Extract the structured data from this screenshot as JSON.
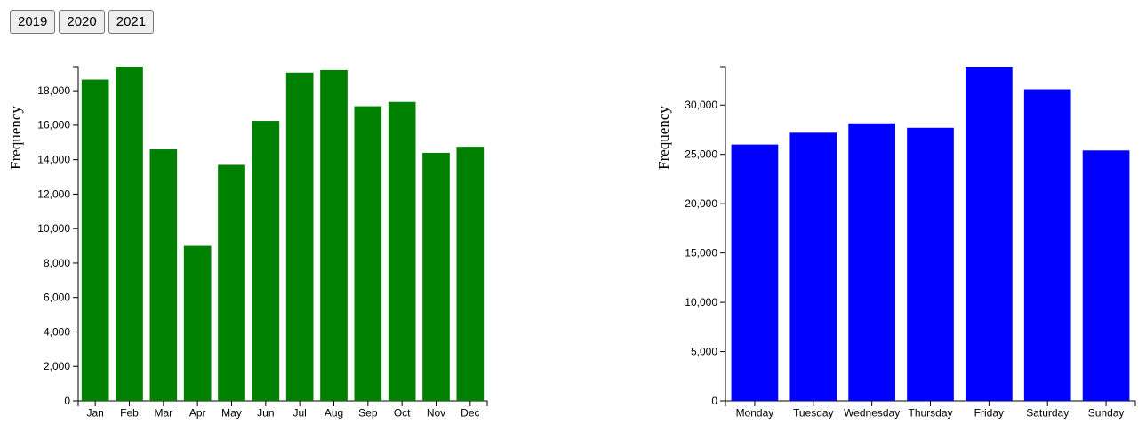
{
  "controls": {
    "year_buttons": [
      "2019",
      "2020",
      "2021"
    ]
  },
  "chart_data": [
    {
      "type": "bar",
      "categories": [
        "Jan",
        "Feb",
        "Mar",
        "Apr",
        "May",
        "Jun",
        "Jul",
        "Aug",
        "Sep",
        "Oct",
        "Nov",
        "Dec"
      ],
      "values": [
        18650,
        19400,
        14600,
        9000,
        13700,
        16250,
        19050,
        19200,
        17100,
        17350,
        14400,
        14750
      ],
      "ylabel": "Frequency",
      "ylim": [
        0,
        19400
      ],
      "yticks": [
        0,
        2000,
        4000,
        6000,
        8000,
        10000,
        12000,
        14000,
        16000,
        18000
      ],
      "ytick_labels": [
        "0",
        "2,000",
        "4,000",
        "6,000",
        "8,000",
        "10,000",
        "12,000",
        "14,000",
        "16,000",
        "18,000"
      ],
      "color": "#008000",
      "grid": false
    },
    {
      "type": "bar",
      "categories": [
        "Monday",
        "Tuesday",
        "Wednesday",
        "Thursday",
        "Friday",
        "Saturday",
        "Sunday"
      ],
      "values": [
        26000,
        27200,
        28150,
        27700,
        33900,
        31600,
        25400
      ],
      "ylabel": "Frequency",
      "ylim": [
        0,
        33900
      ],
      "yticks": [
        0,
        5000,
        10000,
        15000,
        20000,
        25000,
        30000
      ],
      "ytick_labels": [
        "0",
        "5,000",
        "10,000",
        "15,000",
        "20,000",
        "25,000",
        "30,000"
      ],
      "color": "#0000ff",
      "grid": false
    }
  ]
}
